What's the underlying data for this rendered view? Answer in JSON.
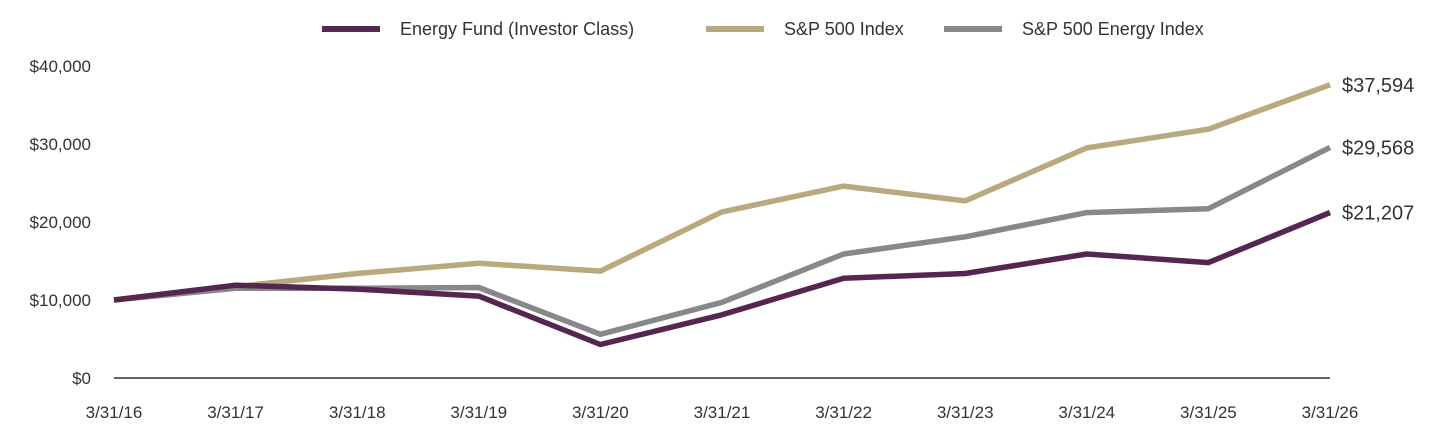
{
  "chart_data": {
    "type": "line",
    "categories": [
      "3/31/16",
      "3/31/17",
      "3/31/18",
      "3/31/19",
      "3/31/20",
      "3/31/21",
      "3/31/22",
      "3/31/23",
      "3/31/24",
      "3/31/25",
      "3/31/26"
    ],
    "ylim": [
      0,
      40000
    ],
    "yticks": [
      "$0",
      "$10,000",
      "$20,000",
      "$30,000",
      "$40,000"
    ],
    "ytick_values": [
      0,
      10000,
      20000,
      30000,
      40000
    ],
    "legend_position": "top",
    "grid": false,
    "series": [
      {
        "name": "Energy Fund (Investor Class)",
        "color": "#55264f",
        "values": [
          10000,
          11900,
          11400,
          10500,
          4300,
          8100,
          12800,
          13400,
          15900,
          14800,
          21207
        ],
        "end_label": "$21,207"
      },
      {
        "name": "S&P 500 Index",
        "color": "#b8aa7d",
        "values": [
          10000,
          11700,
          13400,
          14700,
          13700,
          21300,
          24600,
          22700,
          29500,
          31900,
          37594
        ],
        "end_label": "$37,594"
      },
      {
        "name": "S&P 500 Energy Index",
        "color": "#88888b",
        "values": [
          10000,
          11500,
          11500,
          11600,
          5600,
          9700,
          15900,
          18100,
          21200,
          21700,
          29568
        ],
        "end_label": "$29,568"
      }
    ]
  }
}
